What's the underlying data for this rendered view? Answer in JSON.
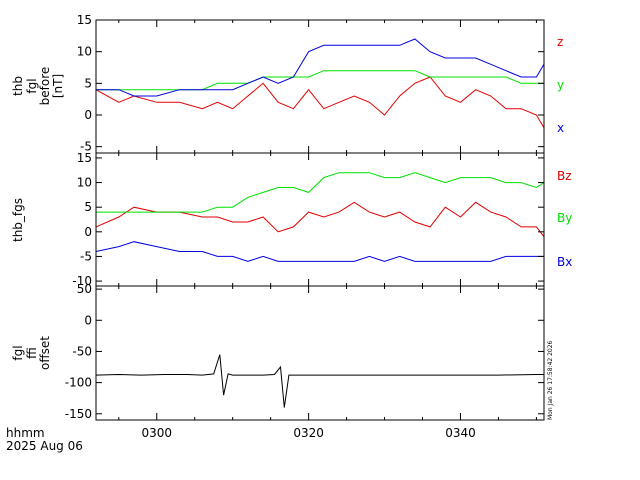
{
  "chart_data": [
    {
      "type": "line",
      "ylabel_lines": [
        "thb",
        "fgl",
        "before",
        "[nT]"
      ],
      "ylim": [
        -6,
        15
      ],
      "yticks": [
        -5,
        0,
        5,
        10,
        15
      ],
      "tick_labels": [
        "-5",
        "0",
        "5",
        "10",
        "15"
      ],
      "series": [
        {
          "name": "z",
          "color": "#e00000",
          "x": [
            292,
            295,
            297,
            300,
            303,
            306,
            308,
            310,
            312,
            314,
            316,
            318,
            320,
            322,
            324,
            326,
            328,
            330,
            332,
            334,
            336,
            338,
            340,
            342,
            344,
            346,
            348,
            350,
            351
          ],
          "values": [
            4,
            2,
            3,
            2,
            2,
            1,
            2,
            1,
            3,
            5,
            2,
            1,
            4,
            1,
            2,
            3,
            2,
            0,
            3,
            5,
            6,
            3,
            2,
            4,
            3,
            1,
            1,
            0,
            -2
          ]
        },
        {
          "name": "y",
          "color": "#00e000",
          "x": [
            292,
            295,
            297,
            300,
            303,
            306,
            308,
            310,
            312,
            314,
            316,
            318,
            320,
            322,
            324,
            326,
            328,
            330,
            332,
            334,
            336,
            338,
            340,
            342,
            344,
            346,
            348,
            350,
            351
          ],
          "values": [
            4,
            4,
            4,
            4,
            4,
            4,
            5,
            5,
            5,
            6,
            6,
            6,
            6,
            7,
            7,
            7,
            7,
            7,
            7,
            7,
            6,
            6,
            6,
            6,
            6,
            6,
            5,
            5,
            5
          ]
        },
        {
          "name": "x",
          "color": "#0000e0",
          "x": [
            292,
            295,
            297,
            300,
            303,
            306,
            308,
            310,
            312,
            314,
            316,
            318,
            320,
            322,
            324,
            326,
            328,
            330,
            332,
            334,
            336,
            338,
            340,
            342,
            344,
            346,
            348,
            350,
            351
          ],
          "values": [
            4,
            4,
            3,
            3,
            4,
            4,
            4,
            4,
            5,
            6,
            5,
            6,
            10,
            11,
            11,
            11,
            11,
            11,
            11,
            12,
            10,
            9,
            9,
            9,
            8,
            7,
            6,
            6,
            8
          ]
        }
      ]
    },
    {
      "type": "line",
      "ylabel_lines": [
        "thb_fgs"
      ],
      "ylim": [
        -11,
        16
      ],
      "yticks": [
        -10,
        -5,
        0,
        5,
        10,
        15
      ],
      "tick_labels": [
        "-10",
        "-5",
        "0",
        "5",
        "10",
        "15"
      ],
      "series": [
        {
          "name": "Bz",
          "color": "#e00000",
          "x": [
            292,
            295,
            297,
            300,
            303,
            306,
            308,
            310,
            312,
            314,
            316,
            318,
            320,
            322,
            324,
            326,
            328,
            330,
            332,
            334,
            336,
            338,
            340,
            342,
            344,
            346,
            348,
            350,
            351
          ],
          "values": [
            1,
            3,
            5,
            4,
            4,
            3,
            3,
            2,
            2,
            3,
            0,
            1,
            4,
            3,
            4,
            6,
            4,
            3,
            4,
            2,
            1,
            5,
            3,
            6,
            4,
            3,
            1,
            1,
            -1
          ]
        },
        {
          "name": "By",
          "color": "#00e000",
          "x": [
            292,
            295,
            297,
            300,
            303,
            306,
            308,
            310,
            312,
            314,
            316,
            318,
            320,
            322,
            324,
            326,
            328,
            330,
            332,
            334,
            336,
            338,
            340,
            342,
            344,
            346,
            348,
            350,
            351
          ],
          "values": [
            4,
            4,
            4,
            4,
            4,
            4,
            5,
            5,
            7,
            8,
            9,
            9,
            8,
            11,
            12,
            12,
            12,
            11,
            11,
            12,
            11,
            10,
            11,
            11,
            11,
            10,
            10,
            9,
            10
          ]
        },
        {
          "name": "Bx",
          "color": "#0000e0",
          "x": [
            292,
            295,
            297,
            300,
            303,
            306,
            308,
            310,
            312,
            314,
            316,
            318,
            320,
            322,
            324,
            326,
            328,
            330,
            332,
            334,
            336,
            338,
            340,
            342,
            344,
            346,
            348,
            350,
            351
          ],
          "values": [
            -4,
            -3,
            -2,
            -3,
            -4,
            -4,
            -5,
            -5,
            -6,
            -5,
            -6,
            -6,
            -6,
            -6,
            -6,
            -6,
            -5,
            -6,
            -5,
            -6,
            -6,
            -6,
            -6,
            -6,
            -6,
            -5,
            -5,
            -5,
            -5
          ]
        }
      ]
    },
    {
      "type": "line",
      "ylabel_lines": [
        "fgl",
        "ffi",
        "offset"
      ],
      "ylim": [
        -160,
        55
      ],
      "yticks": [
        -150,
        -100,
        -50,
        0,
        50
      ],
      "tick_labels": [
        "-150",
        "-100",
        "-50",
        "0",
        "50"
      ],
      "series": [
        {
          "name": "fgl ffi offset",
          "color": "#000000",
          "x": [
            292,
            295,
            298,
            301,
            304,
            306,
            307.5,
            308.3,
            308.8,
            309.4,
            310,
            312,
            314,
            315.5,
            316.3,
            316.8,
            317.4,
            318,
            320,
            325,
            330,
            335,
            340,
            345,
            350,
            351
          ],
          "values": [
            -88,
            -87,
            -88,
            -87,
            -87,
            -88,
            -86,
            -55,
            -120,
            -86,
            -88,
            -88,
            -88,
            -87,
            -75,
            -140,
            -88,
            -88,
            -88,
            -88,
            -88,
            -88,
            -88,
            -88,
            -87,
            -87
          ]
        }
      ]
    }
  ],
  "xaxis": {
    "xlim": [
      292,
      351
    ],
    "ticks": [
      300,
      320,
      340
    ],
    "tick_labels": [
      "0300",
      "0320",
      "0340"
    ],
    "minor_step": 5
  },
  "footer": {
    "unit_label": "hhmm",
    "date_label": "2025 Aug 06"
  },
  "stamp": "Mon Jan 26 17:58:42 2026"
}
